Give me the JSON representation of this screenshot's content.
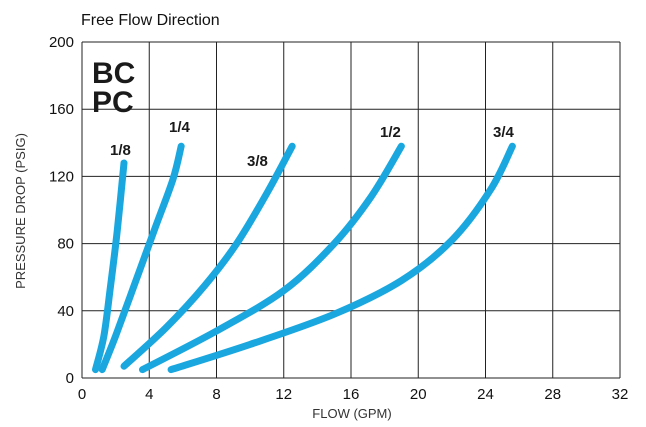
{
  "chart_data": {
    "type": "line",
    "title": "Free Flow Direction",
    "xlabel": "FLOW (GPM)",
    "ylabel": "PRESSURE DROP (PSIG)",
    "xlim": [
      0,
      32
    ],
    "ylim": [
      0,
      200
    ],
    "x_ticks": [
      "0",
      "4",
      "8",
      "12",
      "16",
      "20",
      "24",
      "28",
      "32"
    ],
    "y_ticks": [
      "0",
      "40",
      "80",
      "120",
      "160",
      "200"
    ],
    "grid": true,
    "brand_lines": [
      "BC",
      "PC"
    ],
    "series": [
      {
        "name": "1/8",
        "points": [
          [
            0.8,
            5
          ],
          [
            1.3,
            25
          ],
          [
            1.7,
            55
          ],
          [
            2.1,
            88
          ],
          [
            2.5,
            128
          ]
        ]
      },
      {
        "name": "1/4",
        "points": [
          [
            1.2,
            5
          ],
          [
            2.0,
            25
          ],
          [
            3.1,
            55
          ],
          [
            4.3,
            88
          ],
          [
            5.4,
            118
          ],
          [
            5.9,
            138
          ]
        ]
      },
      {
        "name": "3/8",
        "points": [
          [
            2.5,
            7
          ],
          [
            5.0,
            30
          ],
          [
            7.3,
            55
          ],
          [
            9.2,
            80
          ],
          [
            11.0,
            110
          ],
          [
            12.5,
            138
          ]
        ]
      },
      {
        "name": "1/2",
        "points": [
          [
            3.6,
            5
          ],
          [
            8.0,
            28
          ],
          [
            12.0,
            52
          ],
          [
            15.0,
            80
          ],
          [
            17.2,
            108
          ],
          [
            19.0,
            138
          ]
        ]
      },
      {
        "name": "3/4",
        "points": [
          [
            5.3,
            5
          ],
          [
            10.0,
            20
          ],
          [
            15.0,
            38
          ],
          [
            19.0,
            58
          ],
          [
            22.0,
            82
          ],
          [
            24.3,
            112
          ],
          [
            25.6,
            138
          ]
        ]
      }
    ],
    "line_color": "#1aa7df"
  }
}
